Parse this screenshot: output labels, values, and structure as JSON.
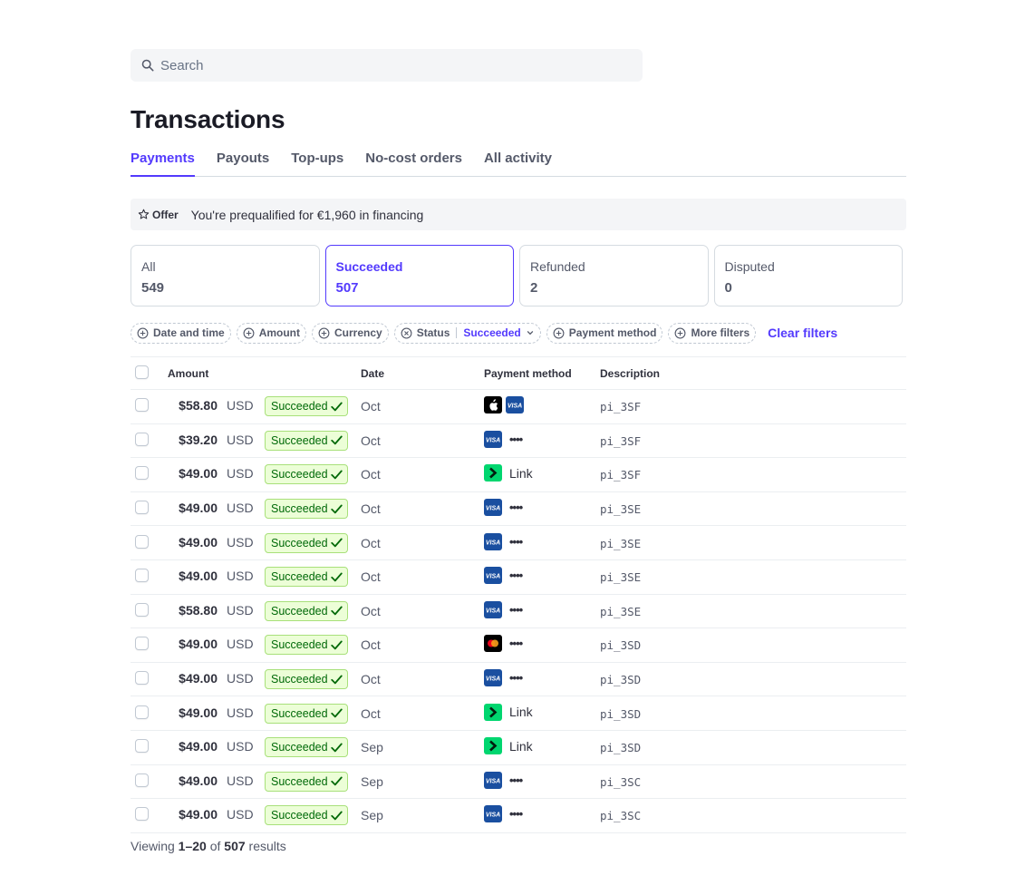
{
  "search": {
    "placeholder": "Search"
  },
  "page_title": "Transactions",
  "tabs": [
    {
      "label": "Payments",
      "active": true
    },
    {
      "label": "Payouts",
      "active": false
    },
    {
      "label": "Top-ups",
      "active": false
    },
    {
      "label": "No-cost orders",
      "active": false
    },
    {
      "label": "All activity",
      "active": false
    }
  ],
  "offer": {
    "tag": "Offer",
    "message": "You're prequalified for €1,960 in financing"
  },
  "status_cards": [
    {
      "label": "All",
      "count": "549",
      "active": false
    },
    {
      "label": "Succeeded",
      "count": "507",
      "active": true
    },
    {
      "label": "Refunded",
      "count": "2",
      "active": false
    },
    {
      "label": "Disputed",
      "count": "0",
      "active": false
    }
  ],
  "filters": {
    "date": "Date and time",
    "amount": "Amount",
    "currency": "Currency",
    "status_label": "Status",
    "status_value": "Succeeded",
    "payment_method": "Payment method",
    "more": "More filters",
    "clear": "Clear filters"
  },
  "table": {
    "headers": {
      "amount": "Amount",
      "date": "Date",
      "payment_method": "Payment method",
      "description": "Description"
    },
    "rows": [
      {
        "amount": "$58.80",
        "currency": "USD",
        "status": "Succeeded",
        "date": "Oct",
        "method": "applepay-visa",
        "method_text": "",
        "desc": "pi_3SF"
      },
      {
        "amount": "$39.20",
        "currency": "USD",
        "status": "Succeeded",
        "date": "Oct",
        "method": "visa",
        "method_text": "••••",
        "desc": "pi_3SF"
      },
      {
        "amount": "$49.00",
        "currency": "USD",
        "status": "Succeeded",
        "date": "Oct",
        "method": "link",
        "method_text": "Link",
        "desc": "pi_3SF"
      },
      {
        "amount": "$49.00",
        "currency": "USD",
        "status": "Succeeded",
        "date": "Oct",
        "method": "visa",
        "method_text": "••••",
        "desc": "pi_3SE"
      },
      {
        "amount": "$49.00",
        "currency": "USD",
        "status": "Succeeded",
        "date": "Oct",
        "method": "visa",
        "method_text": "••••",
        "desc": "pi_3SE"
      },
      {
        "amount": "$49.00",
        "currency": "USD",
        "status": "Succeeded",
        "date": "Oct",
        "method": "visa",
        "method_text": "••••",
        "desc": "pi_3SE"
      },
      {
        "amount": "$58.80",
        "currency": "USD",
        "status": "Succeeded",
        "date": "Oct",
        "method": "visa",
        "method_text": "••••",
        "desc": "pi_3SE"
      },
      {
        "amount": "$49.00",
        "currency": "USD",
        "status": "Succeeded",
        "date": "Oct",
        "method": "mastercard",
        "method_text": "••••",
        "desc": "pi_3SD"
      },
      {
        "amount": "$49.00",
        "currency": "USD",
        "status": "Succeeded",
        "date": "Oct",
        "method": "visa",
        "method_text": "••••",
        "desc": "pi_3SD"
      },
      {
        "amount": "$49.00",
        "currency": "USD",
        "status": "Succeeded",
        "date": "Oct",
        "method": "link",
        "method_text": "Link",
        "desc": "pi_3SD"
      },
      {
        "amount": "$49.00",
        "currency": "USD",
        "status": "Succeeded",
        "date": "Sep",
        "method": "link",
        "method_text": "Link",
        "desc": "pi_3SD"
      },
      {
        "amount": "$49.00",
        "currency": "USD",
        "status": "Succeeded",
        "date": "Sep",
        "method": "visa",
        "method_text": "••••",
        "desc": "pi_3SC"
      },
      {
        "amount": "$49.00",
        "currency": "USD",
        "status": "Succeeded",
        "date": "Sep",
        "method": "visa",
        "method_text": "••••",
        "desc": "pi_3SC"
      }
    ]
  },
  "footer": {
    "prefix": "Viewing ",
    "range": "1–20",
    "of": " of ",
    "total": "507",
    "suffix": " results"
  },
  "colors": {
    "accent": "#533afd",
    "success_bg": "#ecfed7",
    "success_text": "#006908",
    "link_green": "#00d66f",
    "visa_blue": "#1a4fa0"
  }
}
